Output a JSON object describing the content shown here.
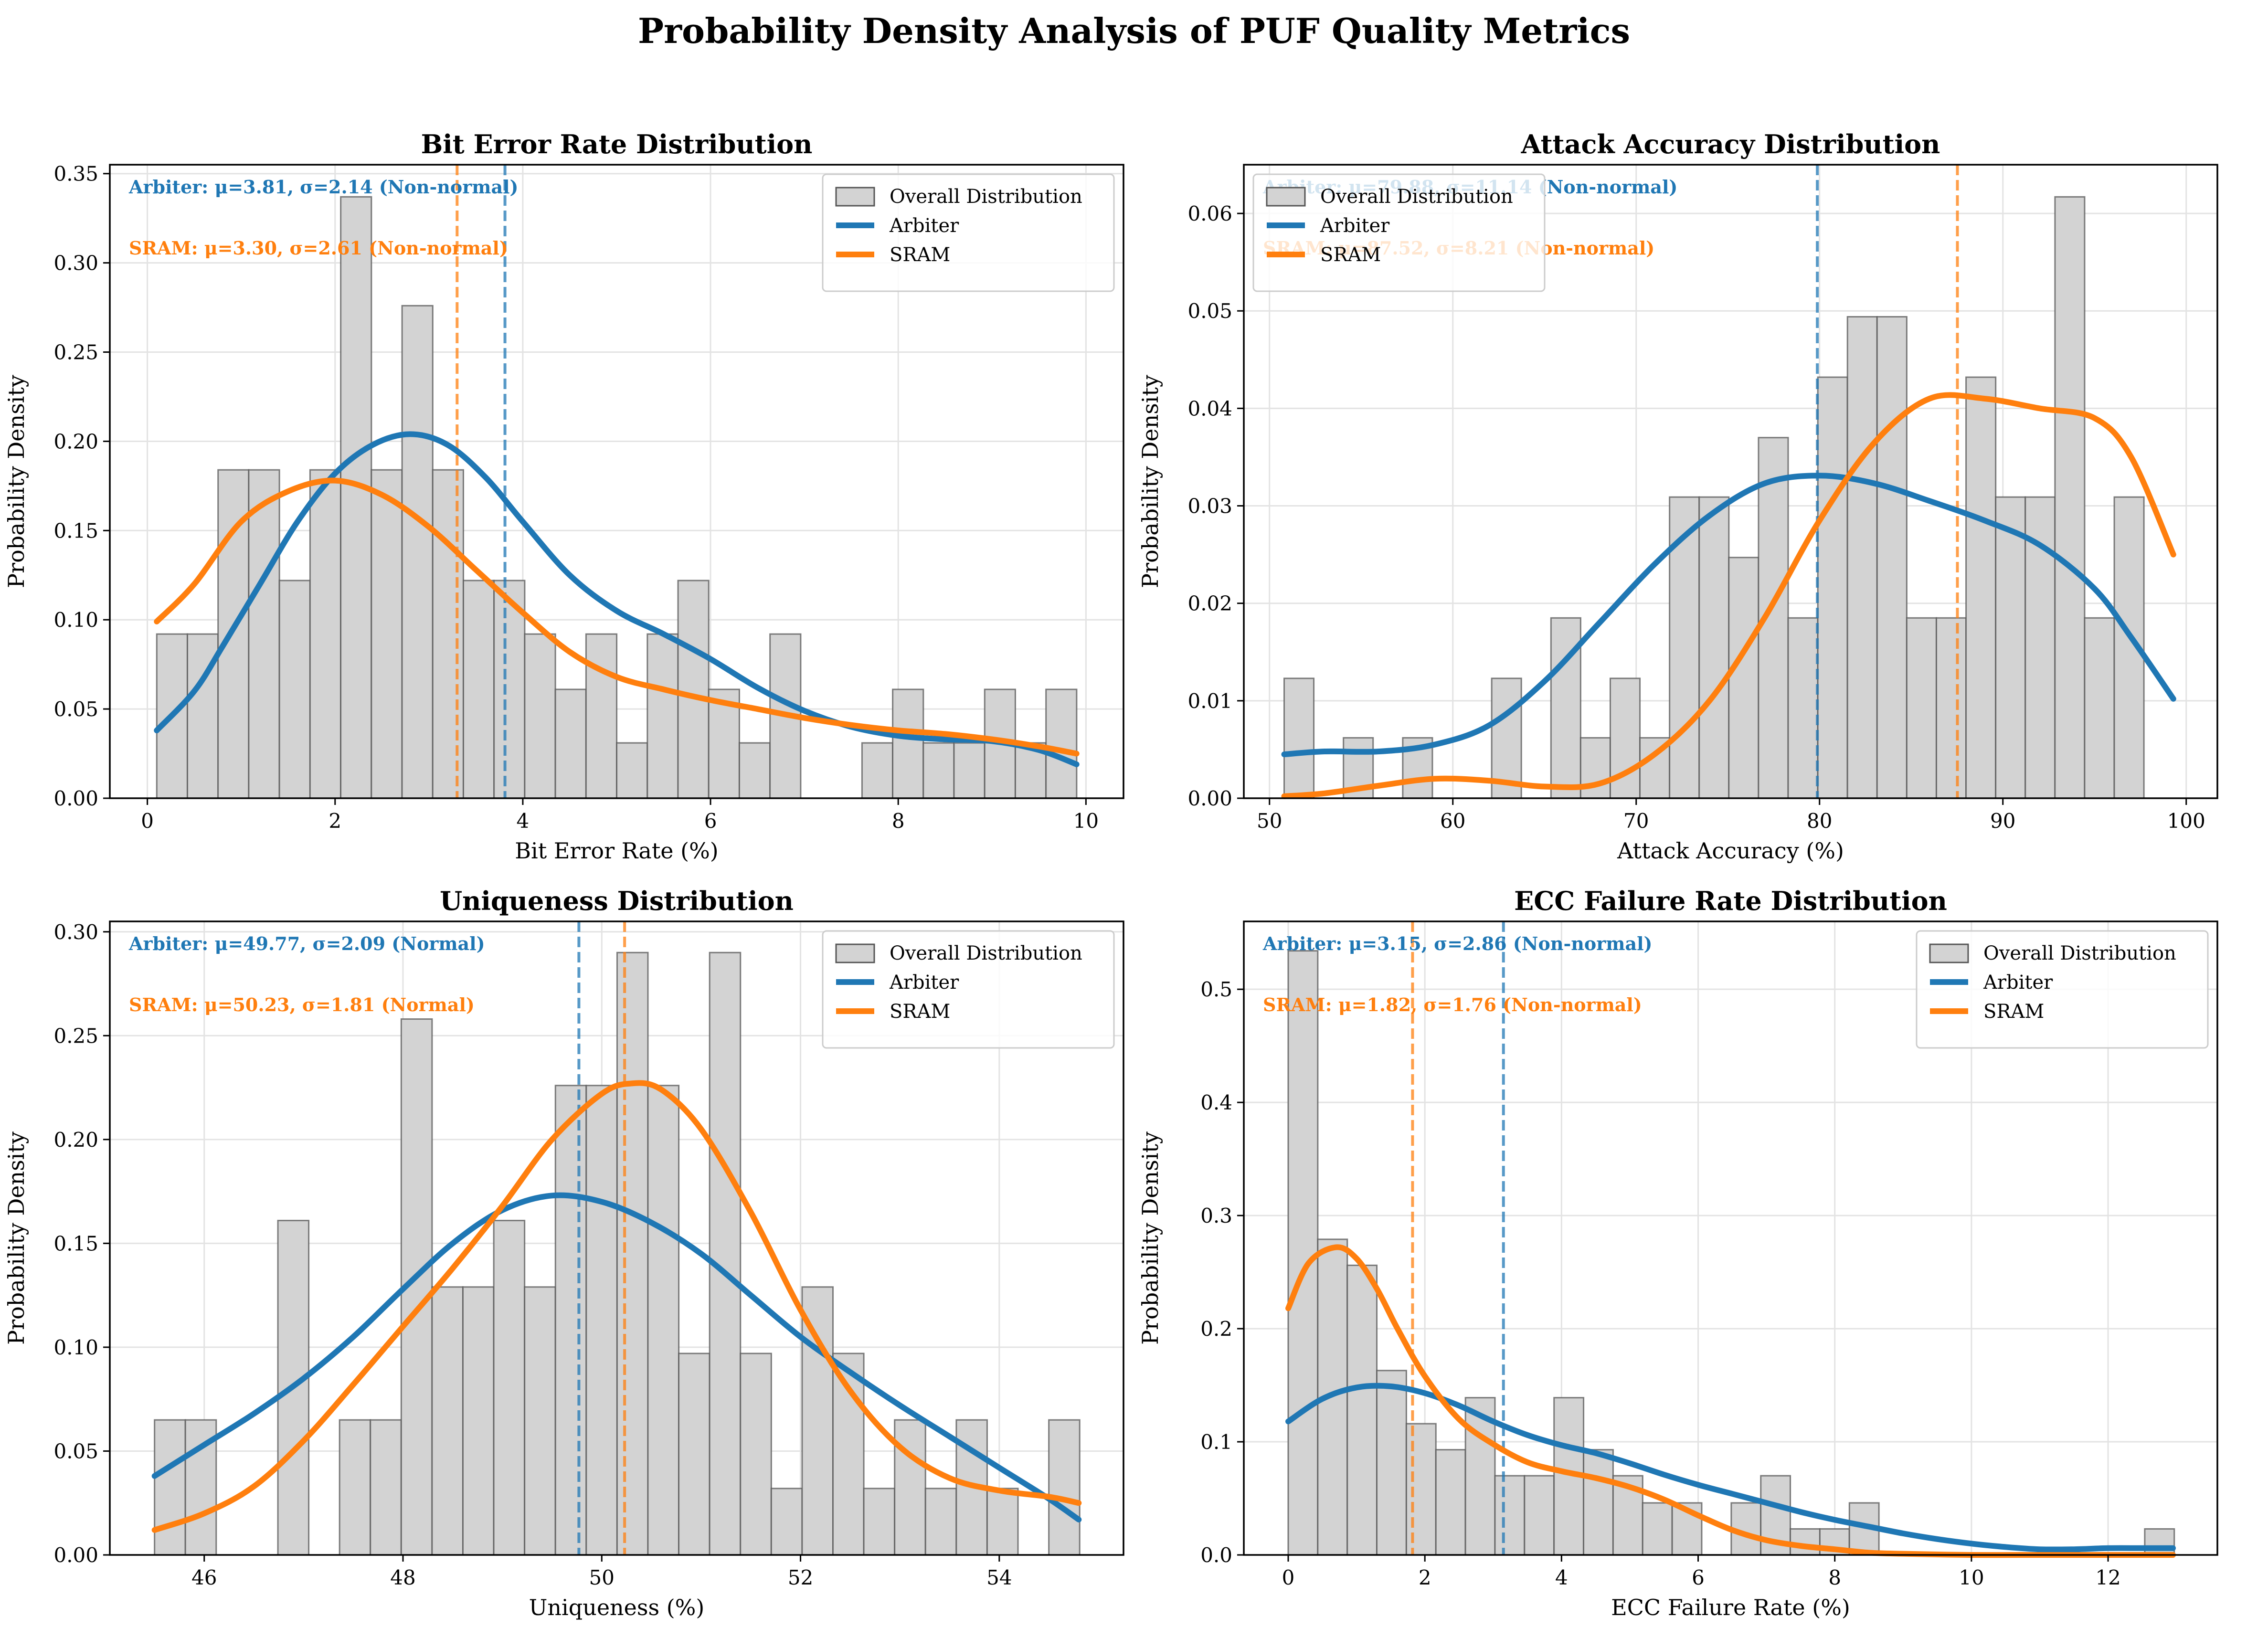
{
  "figure": {
    "title": "Probability Density Analysis of PUF Quality Metrics"
  },
  "colors": {
    "arbiter": "#1f77b4",
    "sram": "#ff7f0e",
    "hist_fill": "#d3d3d3",
    "hist_edge": "#555555",
    "grid": "#e3e3e3"
  },
  "legend_labels": [
    "Overall Distribution",
    "Arbiter",
    "SRAM"
  ],
  "chart_data": [
    {
      "type": "bar",
      "title": "Bit Error Rate Distribution",
      "xlabel": "Bit Error Rate (%)",
      "ylabel": "Probability Density",
      "xlim": [
        -0.4,
        10.4
      ],
      "ylim": [
        0,
        0.355
      ],
      "xticks": [
        0,
        2,
        4,
        6,
        8,
        10
      ],
      "yticks": [
        0.0,
        0.05,
        0.1,
        0.15,
        0.2,
        0.25,
        0.3,
        0.35
      ],
      "tick_format": 2,
      "grid": true,
      "legend": "top-right",
      "bins": {
        "start": 0.1,
        "width": 0.3267,
        "heights": [
          0.092,
          0.092,
          0.184,
          0.184,
          0.122,
          0.184,
          0.337,
          0.184,
          0.276,
          0.184,
          0.122,
          0.122,
          0.092,
          0.061,
          0.092,
          0.031,
          0.092,
          0.122,
          0.061,
          0.031,
          0.092,
          0,
          0,
          0.031,
          0.061,
          0.031,
          0.031,
          0.061,
          0.031,
          0.061
        ]
      },
      "series": [
        {
          "name": "Arbiter",
          "x": [
            0.1,
            0.5,
            0.8,
            1.2,
            1.6,
            2.0,
            2.4,
            2.8,
            3.2,
            3.6,
            4.0,
            4.5,
            5.0,
            5.5,
            6.0,
            6.5,
            7.0,
            7.5,
            8.0,
            8.5,
            9.0,
            9.5,
            9.9
          ],
          "y": [
            0.038,
            0.06,
            0.085,
            0.12,
            0.155,
            0.182,
            0.198,
            0.204,
            0.198,
            0.18,
            0.155,
            0.125,
            0.105,
            0.092,
            0.078,
            0.062,
            0.049,
            0.04,
            0.035,
            0.033,
            0.032,
            0.027,
            0.019
          ],
          "mean": 3.81
        },
        {
          "name": "SRAM",
          "x": [
            0.1,
            0.5,
            1.0,
            1.5,
            2.0,
            2.5,
            3.0,
            3.5,
            4.0,
            4.5,
            5.0,
            5.5,
            6.0,
            6.5,
            7.0,
            7.5,
            8.0,
            8.5,
            9.0,
            9.5,
            9.9
          ],
          "y": [
            0.099,
            0.12,
            0.155,
            0.172,
            0.178,
            0.17,
            0.152,
            0.128,
            0.104,
            0.082,
            0.068,
            0.061,
            0.055,
            0.05,
            0.045,
            0.041,
            0.038,
            0.036,
            0.033,
            0.029,
            0.025
          ],
          "mean": 3.3
        }
      ],
      "annotations": [
        {
          "series": "Arbiter",
          "text": "Arbiter: μ=3.81, σ=2.14 (Non-normal)"
        },
        {
          "series": "SRAM",
          "text": "SRAM: μ=3.30, σ=2.61 (Non-normal)"
        }
      ]
    },
    {
      "type": "bar",
      "title": "Attack Accuracy Distribution",
      "xlabel": "Attack Accuracy (%)",
      "ylabel": "Probability Density",
      "xlim": [
        48.6,
        101.7
      ],
      "ylim": [
        0,
        0.065
      ],
      "xticks": [
        50,
        60,
        70,
        80,
        90,
        100
      ],
      "yticks": [
        0.0,
        0.01,
        0.02,
        0.03,
        0.04,
        0.05,
        0.06
      ],
      "tick_format": 2,
      "grid": true,
      "legend": "top-left",
      "bins": {
        "start": 50.8,
        "width": 1.617,
        "heights": [
          0.0123,
          0,
          0.0062,
          0,
          0.0062,
          0,
          0,
          0.0123,
          0,
          0.0185,
          0.0062,
          0.0123,
          0.0062,
          0.0309,
          0.0309,
          0.0247,
          0.037,
          0.0185,
          0.0432,
          0.0494,
          0.0494,
          0.0185,
          0.0185,
          0.0432,
          0.0309,
          0.0309,
          0.0617,
          0.0185,
          0.0309
        ]
      },
      "series": [
        {
          "name": "Arbiter",
          "x": [
            50.8,
            53,
            56,
            59,
            62,
            65,
            68,
            71,
            74,
            77,
            80,
            83,
            86,
            89,
            92,
            95,
            97,
            99.3
          ],
          "y": [
            0.0045,
            0.0048,
            0.0048,
            0.0055,
            0.0075,
            0.012,
            0.018,
            0.024,
            0.029,
            0.0323,
            0.0331,
            0.0323,
            0.0305,
            0.0285,
            0.026,
            0.0215,
            0.0165,
            0.0102
          ],
          "mean": 79.88
        },
        {
          "name": "SRAM",
          "x": [
            50.8,
            53,
            56,
            59,
            62,
            65,
            68,
            71,
            74,
            77,
            80,
            83,
            86,
            89,
            92,
            95,
            97,
            99.3
          ],
          "y": [
            0.0002,
            0.0005,
            0.0013,
            0.002,
            0.0018,
            0.0012,
            0.0015,
            0.0045,
            0.01,
            0.0185,
            0.0285,
            0.0365,
            0.041,
            0.041,
            0.04,
            0.039,
            0.035,
            0.025
          ],
          "mean": 87.52
        }
      ],
      "annotations": [
        {
          "series": "Arbiter",
          "text": "Arbiter: μ=79.88, σ=11.14 (Non-normal)"
        },
        {
          "series": "SRAM",
          "text": "SRAM: μ=87.52, σ=8.21 (Non-normal)"
        }
      ]
    },
    {
      "type": "bar",
      "title": "Uniqueness Distribution",
      "xlabel": "Uniqueness (%)",
      "ylabel": "Probability Density",
      "xlim": [
        45.05,
        55.25
      ],
      "ylim": [
        0,
        0.305
      ],
      "xticks": [
        46,
        48,
        50,
        52,
        54
      ],
      "yticks": [
        0.0,
        0.05,
        0.1,
        0.15,
        0.2,
        0.25,
        0.3
      ],
      "tick_format": 2,
      "grid": true,
      "legend": "top-right",
      "bins": {
        "start": 45.5,
        "width": 0.3103,
        "heights": [
          0.065,
          0.065,
          0,
          0,
          0.161,
          0,
          0.065,
          0.065,
          0.258,
          0.129,
          0.129,
          0.161,
          0.129,
          0.226,
          0.226,
          0.29,
          0.226,
          0.097,
          0.29,
          0.097,
          0.032,
          0.129,
          0.097,
          0.032,
          0.065,
          0.032,
          0.065,
          0.032,
          0,
          0.065
        ]
      },
      "series": [
        {
          "name": "Arbiter",
          "x": [
            45.5,
            46.0,
            46.5,
            47.0,
            47.5,
            48.0,
            48.5,
            49.0,
            49.5,
            50.0,
            50.5,
            51.0,
            51.5,
            52.0,
            52.5,
            53.0,
            53.5,
            54.0,
            54.5,
            54.8
          ],
          "y": [
            0.038,
            0.053,
            0.068,
            0.085,
            0.105,
            0.128,
            0.15,
            0.166,
            0.173,
            0.17,
            0.16,
            0.145,
            0.125,
            0.105,
            0.088,
            0.072,
            0.057,
            0.042,
            0.027,
            0.017
          ],
          "mean": 49.77
        },
        {
          "name": "SRAM",
          "x": [
            45.5,
            46.0,
            46.5,
            47.0,
            47.5,
            48.0,
            48.5,
            49.0,
            49.5,
            50.0,
            50.3,
            50.6,
            51.0,
            51.5,
            52.0,
            52.5,
            53.0,
            53.5,
            54.0,
            54.5,
            54.8
          ],
          "y": [
            0.012,
            0.02,
            0.033,
            0.055,
            0.082,
            0.11,
            0.138,
            0.168,
            0.2,
            0.222,
            0.227,
            0.224,
            0.205,
            0.165,
            0.118,
            0.079,
            0.052,
            0.037,
            0.031,
            0.028,
            0.025
          ],
          "mean": 50.23
        }
      ],
      "annotations": [
        {
          "series": "Arbiter",
          "text": "Arbiter: μ=49.77, σ=2.09 (Normal)"
        },
        {
          "series": "SRAM",
          "text": "SRAM: μ=50.23, σ=1.81 (Normal)"
        }
      ]
    },
    {
      "type": "bar",
      "title": "ECC Failure Rate Distribution",
      "xlabel": "ECC Failure Rate (%)",
      "ylabel": "Probability Density",
      "xlim": [
        -0.65,
        13.6
      ],
      "ylim": [
        0,
        0.56
      ],
      "xticks": [
        0,
        2,
        4,
        6,
        8,
        10,
        12
      ],
      "yticks": [
        0.0,
        0.1,
        0.2,
        0.3,
        0.4,
        0.5
      ],
      "tick_format": 1,
      "grid": true,
      "legend": "top-right",
      "bins": {
        "start": 0.0,
        "width": 0.4323,
        "heights": [
          0.534,
          0.279,
          0.256,
          0.163,
          0.116,
          0.093,
          0.139,
          0.07,
          0.07,
          0.139,
          0.093,
          0.07,
          0.046,
          0.046,
          0,
          0.046,
          0.07,
          0.023,
          0.023,
          0.046,
          0,
          0,
          0,
          0,
          0,
          0,
          0,
          0,
          0,
          0.023
        ]
      },
      "series": [
        {
          "name": "Arbiter",
          "x": [
            0,
            0.5,
            1.0,
            1.5,
            2.0,
            2.5,
            3.0,
            3.5,
            4.0,
            4.5,
            5.0,
            5.5,
            6.0,
            6.5,
            7.0,
            7.5,
            8.0,
            8.5,
            9.0,
            9.5,
            10.0,
            10.5,
            11.0,
            11.5,
            12.0,
            12.5,
            12.95
          ],
          "y": [
            0.118,
            0.138,
            0.148,
            0.149,
            0.143,
            0.132,
            0.118,
            0.106,
            0.097,
            0.09,
            0.081,
            0.071,
            0.062,
            0.054,
            0.046,
            0.038,
            0.031,
            0.025,
            0.019,
            0.014,
            0.01,
            0.007,
            0.005,
            0.005,
            0.006,
            0.006,
            0.006
          ],
          "mean": 3.15
        },
        {
          "name": "SRAM",
          "x": [
            0,
            0.3,
            0.7,
            1.0,
            1.3,
            1.6,
            2.0,
            2.5,
            3.0,
            3.5,
            4.0,
            4.5,
            5.0,
            5.5,
            6.0,
            6.5,
            7.0,
            7.5,
            8.0,
            8.5,
            9.0,
            10.0,
            11.0,
            12.0,
            12.95
          ],
          "y": [
            0.218,
            0.258,
            0.272,
            0.262,
            0.235,
            0.2,
            0.158,
            0.12,
            0.098,
            0.082,
            0.074,
            0.068,
            0.06,
            0.049,
            0.035,
            0.022,
            0.013,
            0.008,
            0.005,
            0.002,
            0.001,
            0.0,
            0.0,
            0.0,
            0.0
          ],
          "mean": 1.82
        }
      ],
      "annotations": [
        {
          "series": "Arbiter",
          "text": "Arbiter: μ=3.15, σ=2.86 (Non-normal)"
        },
        {
          "series": "SRAM",
          "text": "SRAM: μ=1.82, σ=1.76 (Non-normal)"
        }
      ]
    }
  ]
}
